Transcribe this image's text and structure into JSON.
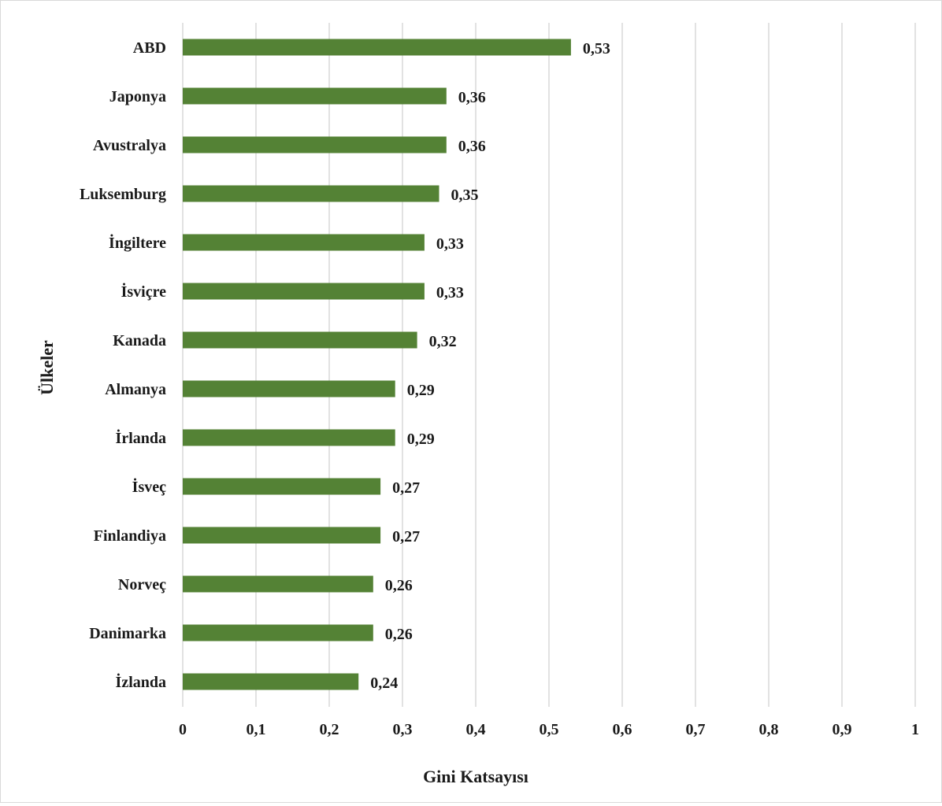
{
  "chart_data": {
    "type": "bar",
    "orientation": "horizontal",
    "title": "",
    "xlabel": "Gini Katsayısı",
    "ylabel": "Ülkeler",
    "xlim": [
      0,
      1
    ],
    "x_ticks": [
      0,
      0.1,
      0.2,
      0.3,
      0.4,
      0.5,
      0.6,
      0.7,
      0.8,
      0.9,
      1
    ],
    "x_tick_labels": [
      "0",
      "0,1",
      "0,2",
      "0,3",
      "0,4",
      "0,5",
      "0,6",
      "0,7",
      "0,8",
      "0,9",
      "1"
    ],
    "categories": [
      "ABD",
      "Japonya",
      "Avustralya",
      "Luksemburg",
      "İngiltere",
      "İsviçre",
      "Kanada",
      "Almanya",
      "İrlanda",
      "İsveç",
      "Finlandiya",
      "Norveç",
      "Danimarka",
      "İzlanda"
    ],
    "values": [
      0.53,
      0.36,
      0.36,
      0.35,
      0.33,
      0.33,
      0.32,
      0.29,
      0.29,
      0.27,
      0.27,
      0.26,
      0.26,
      0.24
    ],
    "value_labels": [
      "0,53",
      "0,36",
      "0,36",
      "0,35",
      "0,33",
      "0,33",
      "0,32",
      "0,29",
      "0,29",
      "0,27",
      "0,27",
      "0,26",
      "0,26",
      "0,24"
    ],
    "bar_color": "#548235",
    "grid": "vertical",
    "grid_color": "#d9d9d9",
    "legend": "none"
  }
}
